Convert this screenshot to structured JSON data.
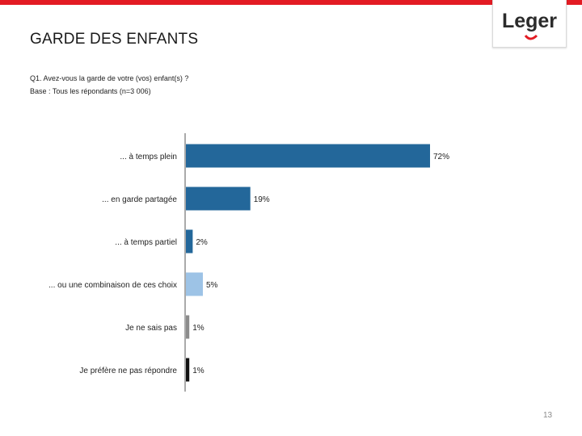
{
  "header": {
    "title": "GARDE DES ENFANTS",
    "logo_text": "Leger",
    "accent_color": "#e31b23"
  },
  "question": "Q1. Avez-vous la garde de votre (vos) enfant(s) ?",
  "base": "Base : Tous les répondants (n=3 006)",
  "chart_data": {
    "type": "bar",
    "orientation": "horizontal",
    "categories": [
      "... à temps plein",
      "... en garde partagée",
      "... à temps partiel",
      "... ou une combinaison de ces choix",
      "Je ne sais pas",
      "Je préfère ne pas répondre"
    ],
    "values": [
      72,
      19,
      2,
      5,
      1,
      1
    ],
    "labels": [
      "72%",
      "19%",
      "2%",
      "5%",
      "1%",
      "1%"
    ],
    "colors": [
      "#23679a",
      "#23679a",
      "#23679a",
      "#9dc3e6",
      "#8c8c8c",
      "#111111"
    ],
    "xlim": [
      0,
      100
    ],
    "title": "",
    "xlabel": "",
    "ylabel": ""
  },
  "footer": {
    "page_number": "13"
  }
}
